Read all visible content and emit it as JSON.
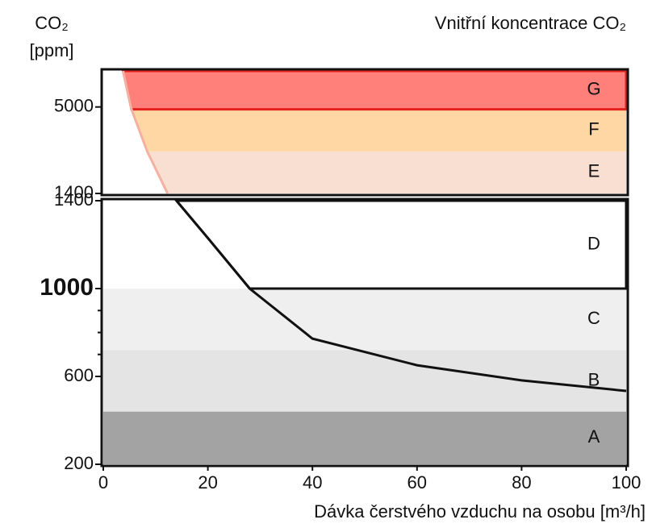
{
  "chart_data": [
    {
      "type": "bands",
      "title": "Vnitřní koncentrace CO₂",
      "ylabel": [
        "CO₂",
        "[ppm]"
      ],
      "xlim": [
        0,
        100
      ],
      "ylim": [
        1400,
        6500
      ],
      "yticks": [
        1400,
        5000
      ],
      "boundary": {
        "x": [
          3.8,
          5.4,
          8.4,
          12.3
        ],
        "values": [
          6500,
          4900,
          3150,
          1400
        ],
        "color": "#f4b0a0"
      },
      "bands": [
        {
          "name": "E",
          "range": [
            1400,
            3150
          ],
          "color": "#f8dfd2",
          "right_of_curve": true
        },
        {
          "name": "F",
          "range": [
            3150,
            4900
          ],
          "color": "#ffd7a4",
          "right_of_curve": true
        },
        {
          "name": "G",
          "range": [
            4900,
            6500
          ],
          "color": "#ff7f7a",
          "right_of_curve": true,
          "border_color": "#e4201c"
        }
      ]
    },
    {
      "type": "bands",
      "xlabel": "Dávka čerstvého vzduchu na osobu [m³/h]",
      "xlim": [
        0,
        100
      ],
      "xticks": [
        0,
        20,
        40,
        60,
        80,
        100
      ],
      "ylim": [
        200,
        1400
      ],
      "yticks": [
        200,
        600,
        1000,
        1400
      ],
      "minor_yticks": [
        700,
        800,
        900
      ],
      "emphasized_ytick": 1000,
      "boundary": {
        "x": [
          14,
          20,
          28,
          40,
          60,
          80,
          100
        ],
        "values": [
          1400,
          1230,
          1000,
          772,
          651,
          582,
          534
        ],
        "color": "#111111"
      },
      "bands": [
        {
          "name": "A",
          "range": [
            200,
            440
          ],
          "color": "#a3a3a3",
          "right_of_curve": false
        },
        {
          "name": "B",
          "range": [
            440,
            720
          ],
          "color": "#e4e4e4",
          "right_of_curve": false
        },
        {
          "name": "C",
          "range": [
            720,
            1000
          ],
          "color": "#efefef",
          "right_of_curve": false
        },
        {
          "name": "D",
          "range": [
            1000,
            1400
          ],
          "color": "#ffffff",
          "right_of_curve": true,
          "border_color": "#111111"
        }
      ]
    }
  ]
}
